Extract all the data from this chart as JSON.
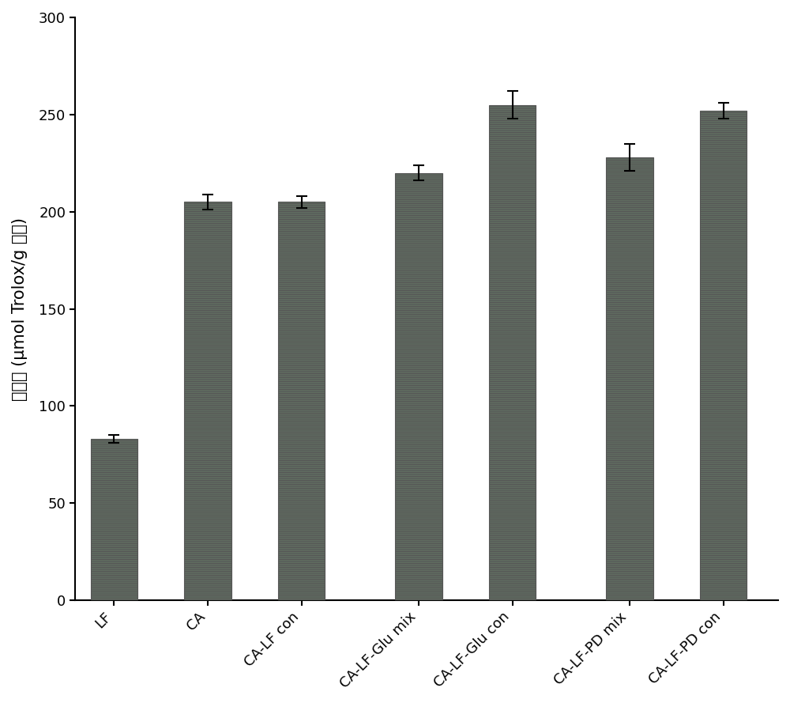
{
  "categories": [
    "LF",
    "CA",
    "CA-LF con",
    "CA-LF-Glu mix",
    "CA-LF-Glu con",
    "CA-LF-PD mix",
    "CA-LF-PD con"
  ],
  "values": [
    83,
    205,
    205,
    220,
    255,
    228,
    252
  ],
  "errors": [
    2,
    4,
    3,
    4,
    7,
    7,
    4
  ],
  "bar_face_color": "#7dab80",
  "bar_hatch_color": "#c07ab8",
  "bar_edgecolor": "#555555",
  "ylabel": "还原力 (μmol Trolox/g 样品)",
  "ylim": [
    0,
    300
  ],
  "yticks": [
    0,
    50,
    100,
    150,
    200,
    250,
    300
  ],
  "background_color": "#ffffff",
  "bar_width": 0.6,
  "group_positions": [
    0.5,
    1.7,
    2.9,
    4.4,
    5.6,
    7.1,
    8.3
  ],
  "xlim": [
    0,
    9.0
  ],
  "figsize": [
    10.0,
    8.89
  ],
  "dpi": 100,
  "ylabel_fontsize": 15,
  "tick_fontsize": 13
}
